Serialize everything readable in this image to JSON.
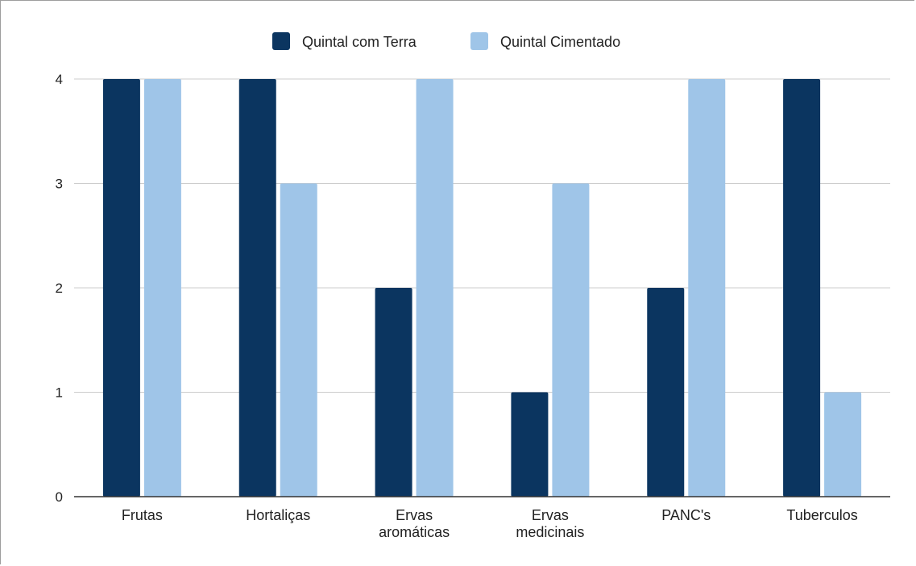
{
  "chart_data": {
    "type": "bar",
    "categories": [
      [
        "Frutas"
      ],
      [
        "Hortaliças"
      ],
      [
        "Ervas",
        "aromáticas"
      ],
      [
        "Ervas",
        "medicinais"
      ],
      [
        "PANC's"
      ],
      [
        "Tuberculos"
      ]
    ],
    "series": [
      {
        "name": "Quintal com Terra",
        "color": "#0b3560",
        "values": [
          4,
          4,
          2,
          1,
          2,
          4
        ]
      },
      {
        "name": "Quintal Cimentado",
        "color": "#9fc5e8",
        "values": [
          4,
          3,
          4,
          3,
          4,
          1
        ]
      }
    ],
    "yticks": [
      0,
      1,
      2,
      3,
      4
    ],
    "ylim": [
      0,
      4
    ],
    "grid": true,
    "legend": "top-center",
    "title": "",
    "xlabel": "",
    "ylabel": ""
  }
}
